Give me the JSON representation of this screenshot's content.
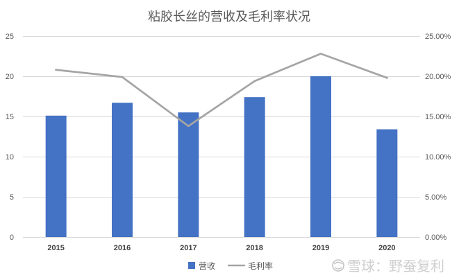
{
  "chart_data": {
    "type": "bar",
    "title": "粘胶长丝的营收及毛利率状况",
    "categories": [
      "2015",
      "2016",
      "2017",
      "2018",
      "2019",
      "2020"
    ],
    "series": [
      {
        "name": "营收",
        "type": "bar",
        "axis": "left",
        "color": "#4472C4",
        "values": [
          15.1,
          16.7,
          15.5,
          17.4,
          20.0,
          13.4
        ]
      },
      {
        "name": "毛利率",
        "type": "line",
        "axis": "right",
        "color": "#A5A5A5",
        "values": [
          20.8,
          19.9,
          13.8,
          19.4,
          22.8,
          19.8
        ]
      }
    ],
    "y_left": {
      "ylim": [
        0,
        25
      ],
      "ticks": [
        0,
        5,
        10,
        15,
        20,
        25
      ],
      "tick_labels": [
        "0",
        "5",
        "10",
        "15",
        "20",
        "25"
      ]
    },
    "y_right": {
      "ylim": [
        0,
        25
      ],
      "ticks": [
        0,
        5,
        10,
        15,
        20,
        25
      ],
      "tick_labels": [
        "0.00%",
        "5.00%",
        "10.00%",
        "15.00%",
        "20.00%",
        "25.00%"
      ]
    },
    "grid": true,
    "grid_color": "#D9D9D9",
    "legend": "bottom"
  },
  "watermark": {
    "text": "雪球：野蚕复利",
    "logo": "xueqiu-logo-icon"
  }
}
